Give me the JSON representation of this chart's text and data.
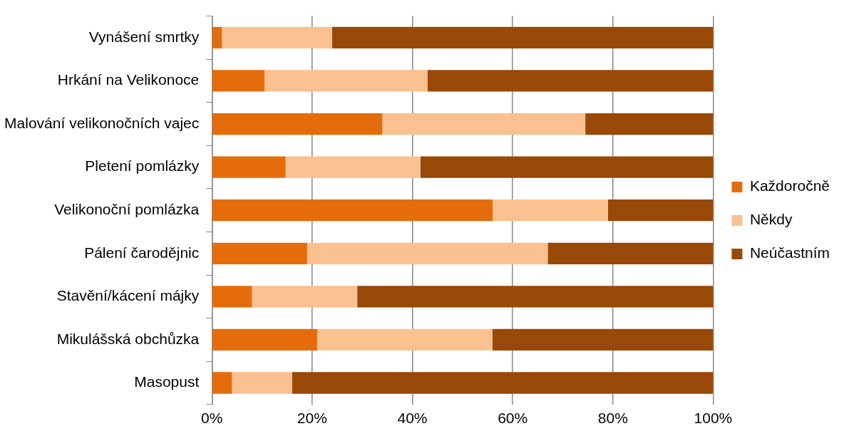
{
  "chart_data": {
    "type": "bar",
    "orientation": "horizontal",
    "stacked": true,
    "categories": [
      "Vynášení smrtky",
      "Hrkání na Velikonoce",
      "Malování velikonočních vajec",
      "Pletení pomlázky",
      "Velikonoční pomlázka",
      "Pálení čarodějnic",
      "Stavění/kácení májky",
      "Mikulášská obchůzka",
      "Masopust"
    ],
    "series": [
      {
        "name": "Každoročně",
        "color": "#e46c0a",
        "values": [
          2,
          10.5,
          34,
          14.7,
          56,
          19,
          8,
          21,
          4
        ]
      },
      {
        "name": "Někdy",
        "color": "#fac090",
        "values": [
          22,
          32.5,
          40.5,
          26.9,
          23,
          48,
          21,
          35,
          12
        ]
      },
      {
        "name": "Neúčastním",
        "color": "#984807",
        "values": [
          76,
          57,
          25.5,
          58.4,
          21,
          33,
          71,
          44,
          84
        ]
      }
    ],
    "xlim": [
      0,
      100
    ],
    "xticks": [
      {
        "value": 0,
        "label": "0%"
      },
      {
        "value": 20,
        "label": "20%"
      },
      {
        "value": 40,
        "label": "40%"
      },
      {
        "value": 60,
        "label": "60%"
      },
      {
        "value": 80,
        "label": "80%"
      },
      {
        "value": 100,
        "label": "100%"
      }
    ],
    "grid": "x",
    "legend": "right"
  }
}
